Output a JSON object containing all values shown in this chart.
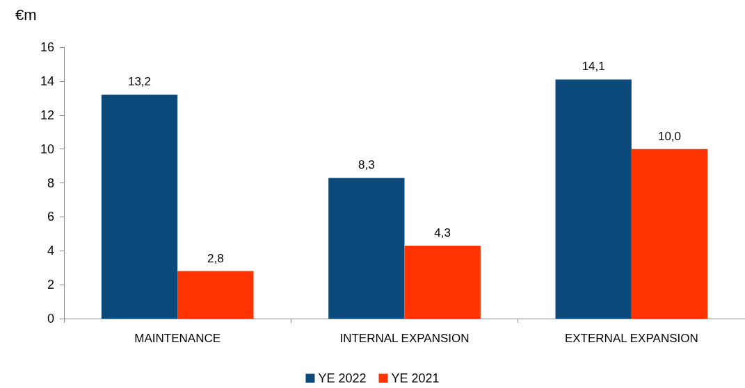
{
  "chart_data": {
    "type": "bar",
    "ylabel": "€m",
    "categories": [
      "MAINTENANCE",
      "INTERNAL EXPANSION",
      "EXTERNAL EXPANSION"
    ],
    "series": [
      {
        "name": "YE 2022",
        "color": "#0d4a7c",
        "values": [
          13.2,
          8.3,
          14.1
        ],
        "value_labels": [
          "13,2",
          "8,3",
          "14,1"
        ]
      },
      {
        "name": "YE 2021",
        "color": "#ff3300",
        "values": [
          2.8,
          4.3,
          10.0
        ],
        "value_labels": [
          "2,8",
          "4,3",
          "10,0"
        ]
      }
    ],
    "ylim": [
      0,
      16
    ],
    "yticks": [
      0,
      2,
      4,
      6,
      8,
      10,
      12,
      14,
      16
    ],
    "grid": false,
    "legend": "bottom"
  }
}
